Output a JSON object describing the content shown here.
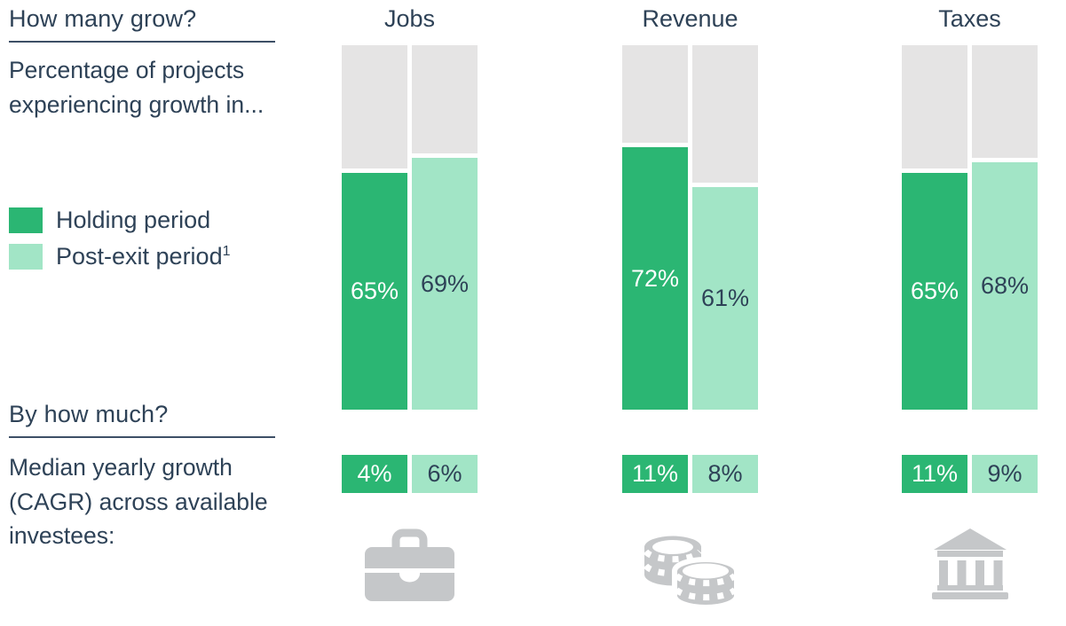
{
  "palette": {
    "holding_green": "#2bb673",
    "post_exit_green": "#a2e5c6",
    "track_gray": "#e5e4e4",
    "text_navy": "#2e4257",
    "icon_gray": "#c5c7c9"
  },
  "left_panel": {
    "how_many": {
      "title": "How many grow?",
      "description": "Percentage of projects experiencing growth in..."
    },
    "legend": [
      {
        "label": "Holding period",
        "superscript": ""
      },
      {
        "label": "Post-exit period",
        "superscript": "1"
      }
    ],
    "by_how_much": {
      "title": "By how much?",
      "description": "Median yearly growth (CAGR) across available investees:"
    }
  },
  "chart_data": {
    "type": "bar",
    "unit": "%",
    "title": "How many grow? / By how much?",
    "categories": [
      "Jobs",
      "Revenue",
      "Taxes"
    ],
    "series": [
      {
        "name": "Holding period",
        "color": "#2bb673",
        "grow_share_pct": [
          65,
          72,
          65
        ],
        "median_cagr_pct": [
          4,
          11,
          11
        ]
      },
      {
        "name": "Post-exit period",
        "color": "#a2e5c6",
        "grow_share_pct": [
          69,
          61,
          68
        ],
        "median_cagr_pct": [
          6,
          8,
          9
        ]
      }
    ],
    "ylim": [
      0,
      100
    ],
    "grid": false,
    "legend_position": "left",
    "icons": [
      "briefcase-icon",
      "coins-icon",
      "bank-icon"
    ]
  }
}
